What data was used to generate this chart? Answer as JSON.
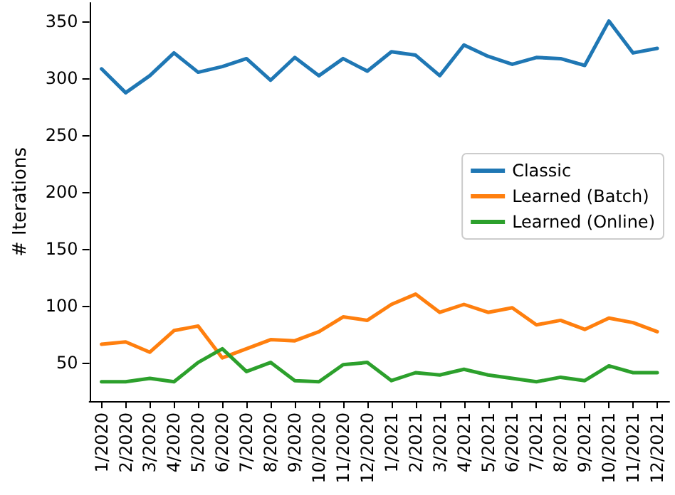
{
  "chart_data": {
    "type": "line",
    "ylabel": "# Iterations",
    "categories": [
      "1/2020",
      "2/2020",
      "3/2020",
      "4/2020",
      "5/2020",
      "6/2020",
      "7/2020",
      "8/2020",
      "9/2020",
      "10/2020",
      "11/2020",
      "12/2020",
      "1/2021",
      "2/2021",
      "3/2021",
      "4/2021",
      "5/2021",
      "6/2021",
      "7/2021",
      "8/2021",
      "9/2021",
      "10/2021",
      "11/2021",
      "12/2021"
    ],
    "series": [
      {
        "name": "Classic",
        "color": "#1f77b4",
        "values": [
          308,
          287,
          302,
          322,
          305,
          310,
          317,
          298,
          318,
          302,
          317,
          306,
          323,
          320,
          302,
          329,
          319,
          312,
          318,
          317,
          311,
          350,
          322,
          326
        ]
      },
      {
        "name": "Learned (Batch)",
        "color": "#ff7f0e",
        "values": [
          66,
          68,
          59,
          78,
          82,
          54,
          62,
          70,
          69,
          77,
          90,
          87,
          101,
          110,
          94,
          101,
          94,
          98,
          83,
          87,
          79,
          89,
          85,
          77
        ]
      },
      {
        "name": "Learned (Online)",
        "color": "#2ca02c",
        "values": [
          33,
          33,
          36,
          33,
          50,
          62,
          42,
          50,
          34,
          33,
          48,
          50,
          34,
          41,
          39,
          44,
          39,
          36,
          33,
          37,
          34,
          47,
          41,
          41
        ]
      }
    ],
    "ylim": [
      16,
      366
    ],
    "yticks": [
      50,
      100,
      150,
      200,
      250,
      300,
      350
    ],
    "legend": "right",
    "grid": false,
    "marker": "none",
    "line_style": "solid"
  }
}
